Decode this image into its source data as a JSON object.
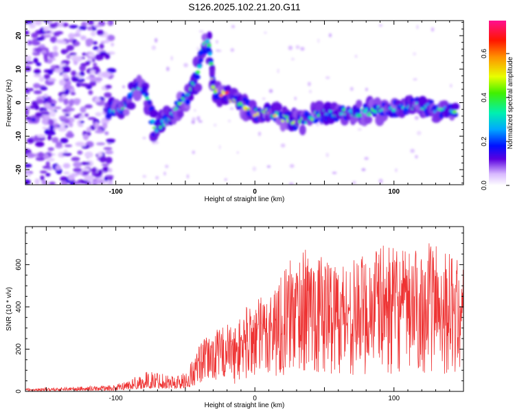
{
  "title": "S126.2025.102.21.20.G11",
  "chart_data": [
    {
      "type": "heatmap",
      "xlabel": "Height of straight line (km)",
      "ylabel": "Frequency (Hz)",
      "xlim": [
        -165,
        150
      ],
      "ylim": [
        -24.5,
        24.5
      ],
      "x_ticks": [
        -100,
        0,
        100
      ],
      "y_ticks": [
        -20,
        -10,
        0,
        10,
        20
      ],
      "colorbar": {
        "label": "Normalized spectral amplitude",
        "range": [
          0.0,
          0.75
        ],
        "ticks": [
          "0.0",
          "0.2",
          "0.4",
          "0.6"
        ]
      },
      "ridge": [
        {
          "x": -105,
          "y": -2,
          "amp": 0.3
        },
        {
          "x": -95,
          "y": -2,
          "amp": 0.4
        },
        {
          "x": -88,
          "y": 3,
          "amp": 0.4
        },
        {
          "x": -80,
          "y": 5,
          "amp": 0.35
        },
        {
          "x": -72,
          "y": -8,
          "amp": 0.45
        },
        {
          "x": -60,
          "y": -4,
          "amp": 0.5
        },
        {
          "x": -50,
          "y": 1,
          "amp": 0.45
        },
        {
          "x": -42,
          "y": 7,
          "amp": 0.4
        },
        {
          "x": -38,
          "y": 16,
          "amp": 0.5
        },
        {
          "x": -33,
          "y": 18,
          "amp": 0.45
        },
        {
          "x": -30,
          "y": 4,
          "amp": 0.55
        },
        {
          "x": -20,
          "y": 2,
          "amp": 0.7
        },
        {
          "x": -10,
          "y": 0,
          "amp": 0.55
        },
        {
          "x": 0,
          "y": -3,
          "amp": 0.6
        },
        {
          "x": 10,
          "y": -3,
          "amp": 0.55
        },
        {
          "x": 30,
          "y": -6,
          "amp": 0.5
        },
        {
          "x": 50,
          "y": -3,
          "amp": 0.45
        },
        {
          "x": 75,
          "y": -3,
          "amp": 0.45
        },
        {
          "x": 100,
          "y": -2,
          "amp": 0.4
        },
        {
          "x": 115,
          "y": -1,
          "amp": 0.4
        },
        {
          "x": 130,
          "y": -2,
          "amp": 0.4
        },
        {
          "x": 145,
          "y": -3,
          "amp": 0.45
        }
      ]
    },
    {
      "type": "line",
      "xlabel": "Height of straight line (km)",
      "ylabel": "SNR (10 * v/v)",
      "xlim": [
        -165,
        150
      ],
      "ylim": [
        0,
        780
      ],
      "x_ticks": [
        -100,
        0,
        100
      ],
      "y_ticks": [
        0,
        200,
        400,
        600
      ],
      "series": [
        {
          "color": "#ee3333",
          "envelope_x": [
            -165,
            -140,
            -100,
            -90,
            -80,
            -70,
            -60,
            -50,
            -40,
            -30,
            -20,
            -15,
            -5,
            5,
            15,
            25,
            35,
            50,
            70,
            90,
            110,
            130,
            150
          ],
          "envelope_y": [
            15,
            20,
            30,
            60,
            90,
            100,
            80,
            90,
            230,
            280,
            330,
            300,
            420,
            450,
            520,
            620,
            680,
            640,
            620,
            700,
            660,
            720,
            600
          ]
        }
      ]
    }
  ]
}
